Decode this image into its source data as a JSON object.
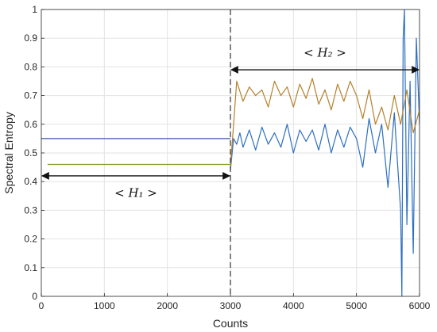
{
  "chart_data": {
    "type": "line",
    "title": "",
    "xlabel": "Counts",
    "ylabel": "Spectral Entropy",
    "xlim": [
      0,
      6000
    ],
    "ylim": [
      0,
      1
    ],
    "xticks": [
      0,
      1000,
      2000,
      3000,
      4000,
      5000,
      6000
    ],
    "yticks": [
      0,
      0.1,
      0.2,
      0.3,
      0.4,
      0.5,
      0.6,
      0.7,
      0.8,
      0.9,
      1
    ],
    "xtick_labels": [
      "0",
      "1000",
      "2000",
      "3000",
      "4000",
      "5000",
      "6000"
    ],
    "ytick_labels": [
      "0",
      "0.1",
      "0.2",
      "0.3",
      "0.4",
      "0.5",
      "0.6",
      "0.7",
      "0.8",
      "0.9",
      "1"
    ],
    "grid": true,
    "legend": false,
    "colors": {
      "blue": "#2c6fc0",
      "brown": "#b5802a",
      "olive": "#7b9a2a",
      "navy": "#3b53a8"
    },
    "series": [
      {
        "color": "#2c6fc0",
        "x": [
          3000,
          3050,
          3100,
          3150,
          3200,
          3300,
          3400,
          3500,
          3600,
          3700,
          3800,
          3900,
          4000,
          4100,
          4200,
          4300,
          4400,
          4500,
          4600,
          4700,
          4800,
          4900,
          5000,
          5100,
          5200,
          5300,
          5400,
          5500,
          5600,
          5650,
          5700,
          5720,
          5740,
          5760,
          5800,
          5850,
          5900,
          5950,
          6000
        ],
        "y": [
          0.44,
          0.55,
          0.53,
          0.57,
          0.52,
          0.58,
          0.51,
          0.59,
          0.53,
          0.57,
          0.52,
          0.6,
          0.5,
          0.58,
          0.54,
          0.58,
          0.51,
          0.6,
          0.5,
          0.58,
          0.52,
          0.59,
          0.55,
          0.45,
          0.62,
          0.5,
          0.6,
          0.38,
          0.64,
          0.47,
          0.3,
          0.0,
          0.9,
          1.0,
          0.25,
          0.75,
          0.15,
          0.9,
          0.6
        ]
      },
      {
        "color": "#b5802a",
        "x": [
          3000,
          3050,
          3100,
          3200,
          3300,
          3400,
          3500,
          3600,
          3700,
          3800,
          3900,
          4000,
          4100,
          4200,
          4300,
          4400,
          4500,
          4600,
          4700,
          4800,
          4900,
          5000,
          5100,
          5200,
          5300,
          5400,
          5500,
          5600,
          5700,
          5800,
          5900,
          6000
        ],
        "y": [
          0.45,
          0.6,
          0.75,
          0.68,
          0.73,
          0.7,
          0.72,
          0.66,
          0.75,
          0.7,
          0.73,
          0.66,
          0.74,
          0.69,
          0.76,
          0.67,
          0.72,
          0.65,
          0.74,
          0.68,
          0.75,
          0.7,
          0.62,
          0.72,
          0.6,
          0.66,
          0.58,
          0.7,
          0.6,
          0.72,
          0.57,
          0.65
        ]
      },
      {
        "color": "#7b9a2a",
        "x": [
          100,
          3000
        ],
        "y": [
          0.46,
          0.46
        ]
      },
      {
        "color": "#3b53a8",
        "x": [
          0,
          3000
        ],
        "y": [
          0.55,
          0.55
        ]
      }
    ],
    "vlines": [
      {
        "x": 3000,
        "style": "dashed"
      }
    ],
    "annotations": [
      {
        "text": "< H₁ >",
        "arrow_x": [
          0,
          3000
        ],
        "arrow_y": 0.42,
        "label_y": 0.36
      },
      {
        "text": "< H₂ >",
        "arrow_x": [
          3000,
          6000
        ],
        "arrow_y": 0.79,
        "label_y": 0.85
      }
    ]
  }
}
